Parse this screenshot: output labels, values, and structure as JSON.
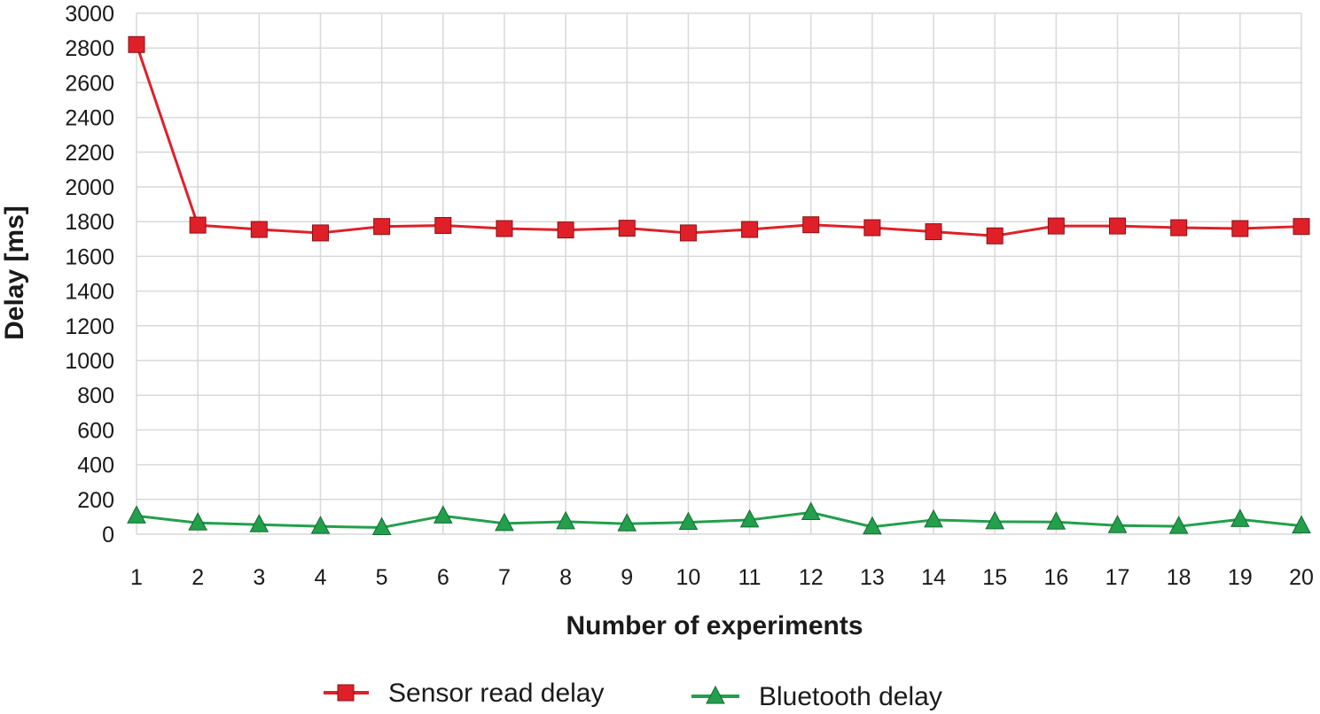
{
  "chart_data": {
    "type": "line",
    "title": "",
    "xlabel": "Number of experiments",
    "ylabel": "Delay [ms]",
    "x": [
      1,
      2,
      3,
      4,
      5,
      6,
      7,
      8,
      9,
      10,
      11,
      12,
      13,
      14,
      15,
      16,
      17,
      18,
      19,
      20
    ],
    "x_tick_labels": [
      "1",
      "2",
      "3",
      "4",
      "5",
      "6",
      "7",
      "8",
      "9",
      "10",
      "11",
      "12",
      "13",
      "14",
      "15",
      "16",
      "17",
      "18",
      "19",
      "20"
    ],
    "ylim": [
      0,
      3000
    ],
    "y_ticks": [
      0,
      200,
      400,
      600,
      800,
      1000,
      1200,
      1400,
      1600,
      1800,
      2000,
      2200,
      2400,
      2600,
      2800,
      3000
    ],
    "y_tick_labels": [
      "0",
      "200",
      "400",
      "600",
      "800",
      "1000",
      "1200",
      "1400",
      "1600",
      "1800",
      "2000",
      "2200",
      "2400",
      "2600",
      "2800",
      "3000"
    ],
    "grid": true,
    "legend_position": "bottom",
    "series": [
      {
        "name": "Sensor read delay",
        "color": "#e02028",
        "marker": "square",
        "values": [
          2820,
          1780,
          1755,
          1735,
          1772,
          1778,
          1760,
          1752,
          1762,
          1735,
          1755,
          1782,
          1765,
          1742,
          1718,
          1775,
          1775,
          1765,
          1760,
          1772
        ]
      },
      {
        "name": "Bluetooth delay",
        "color": "#22a04b",
        "marker": "triangle",
        "values": [
          105,
          65,
          55,
          45,
          38,
          105,
          62,
          72,
          60,
          68,
          82,
          125,
          42,
          82,
          72,
          70,
          50,
          45,
          85,
          48
        ]
      }
    ]
  }
}
